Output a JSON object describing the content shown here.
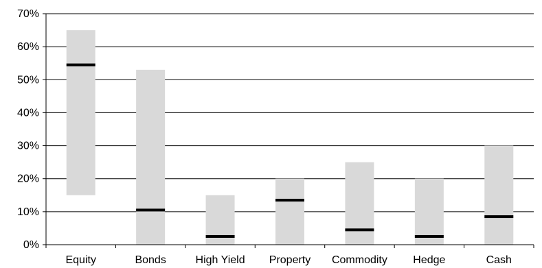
{
  "chart_data": {
    "type": "bar",
    "subtype": "floating range bars with current-value markers",
    "categories": [
      "Equity",
      "Bonds",
      "High Yield",
      "Property",
      "Commodity",
      "Hedge",
      "Cash"
    ],
    "series": [
      {
        "name": "",
        "kind": "range",
        "low": [
          15,
          0,
          0,
          0,
          0,
          0,
          0
        ],
        "high": [
          65,
          53,
          15,
          20,
          25,
          20,
          30
        ]
      },
      {
        "name": "",
        "kind": "marker",
        "values": [
          54.5,
          10.5,
          2.5,
          13.5,
          4.5,
          2.5,
          8.5
        ]
      }
    ],
    "yticks": [
      "0%",
      "10%",
      "20%",
      "30%",
      "40%",
      "50%",
      "60%",
      "70%"
    ],
    "ytick_values": [
      0,
      10,
      20,
      30,
      40,
      50,
      60,
      70
    ],
    "ylim": [
      0,
      70
    ],
    "title": "",
    "xlabel": "",
    "ylabel": "",
    "grid": "horizontal",
    "legend": "none",
    "colors": {
      "range": "#d9d9d9",
      "marker": "#000000",
      "grid": "#000000"
    }
  }
}
